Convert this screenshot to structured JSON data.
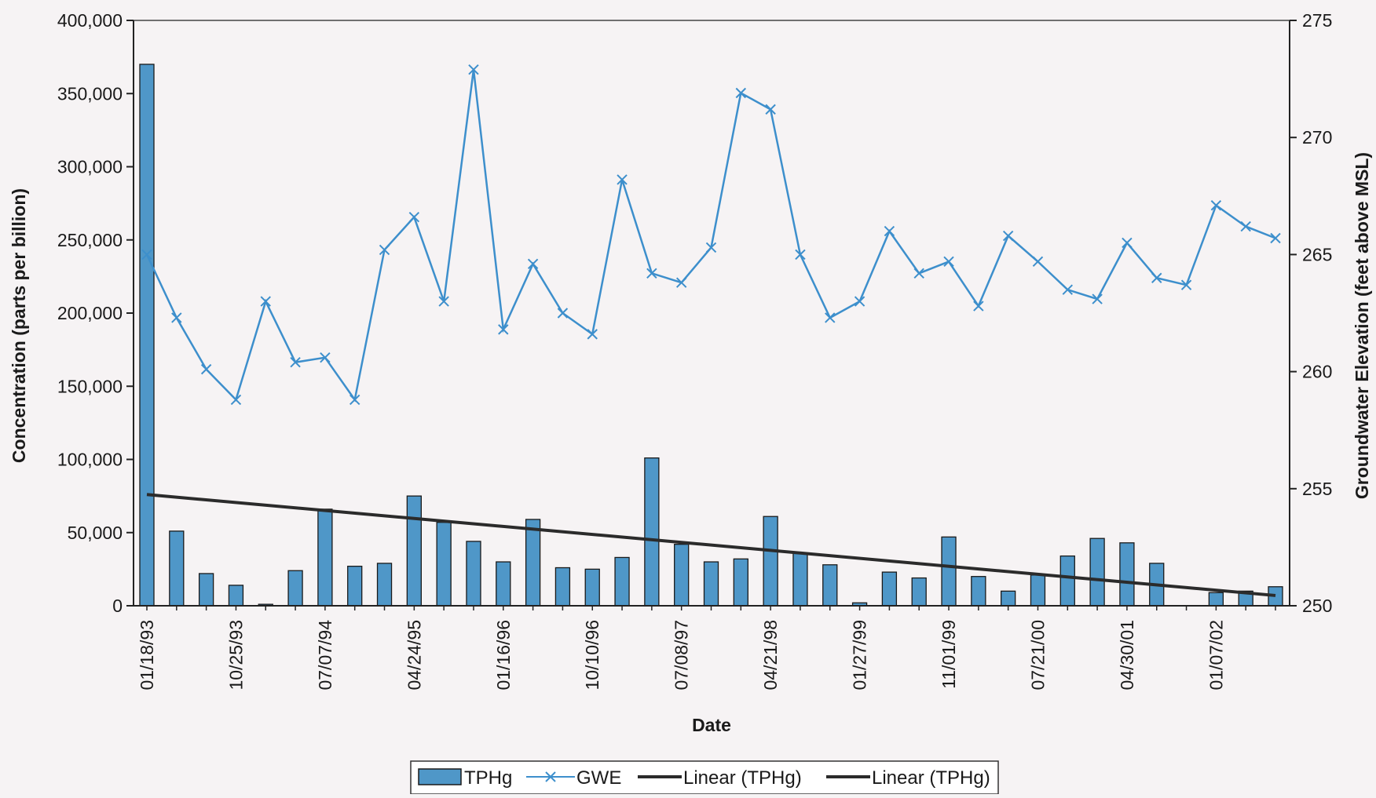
{
  "chart_data": {
    "type": "bar",
    "xlabel": "Date",
    "ylabel_left": "Concentration (parts per billion)",
    "ylabel_right": "Groundwater Elevation (feet above MSL)",
    "ylim_left": [
      0,
      400000
    ],
    "ylim_right": [
      250,
      275
    ],
    "left_ticks": [
      "0",
      "50,000",
      "100,000",
      "150,000",
      "200,000",
      "250,000",
      "300,000",
      "350,000",
      "400,000"
    ],
    "right_ticks": [
      "250",
      "255",
      "260",
      "265",
      "270",
      "275"
    ],
    "x_tick_labels": [
      {
        "index": 0,
        "label": "01/18/93"
      },
      {
        "index": 3,
        "label": "10/25/93"
      },
      {
        "index": 6,
        "label": "07/07/94"
      },
      {
        "index": 9,
        "label": "04/24/95"
      },
      {
        "index": 12,
        "label": "01/16/96"
      },
      {
        "index": 15,
        "label": "10/10/96"
      },
      {
        "index": 18,
        "label": "07/08/97"
      },
      {
        "index": 21,
        "label": "04/21/98"
      },
      {
        "index": 24,
        "label": "01/27/99"
      },
      {
        "index": 27,
        "label": "11/01/99"
      },
      {
        "index": 30,
        "label": "07/21/00"
      },
      {
        "index": 33,
        "label": "04/30/01"
      },
      {
        "index": 36,
        "label": "01/07/02"
      }
    ],
    "grid": false,
    "legend_position": "bottom",
    "series": [
      {
        "name": "TPHg",
        "kind": "bar",
        "axis": "left",
        "color": "#4f97c8",
        "values": [
          370000,
          51000,
          22000,
          14000,
          1000,
          24000,
          66000,
          27000,
          29000,
          75000,
          57000,
          44000,
          30000,
          59000,
          26000,
          25000,
          33000,
          101000,
          42000,
          30000,
          32000,
          61000,
          36000,
          28000,
          2000,
          23000,
          19000,
          47000,
          20000,
          10000,
          21000,
          34000,
          46000,
          43000,
          29000,
          0,
          9000,
          10000,
          13000
        ]
      },
      {
        "name": "GWE",
        "kind": "line",
        "axis": "right",
        "color": "#3d8fcc",
        "values": [
          265.0,
          262.3,
          260.1,
          258.8,
          263.0,
          260.4,
          260.6,
          258.8,
          265.2,
          266.6,
          263.0,
          272.9,
          261.8,
          264.6,
          262.5,
          261.6,
          268.2,
          264.2,
          263.8,
          265.3,
          271.9,
          271.2,
          265.0,
          262.3,
          263.0,
          266.0,
          264.2,
          264.7,
          262.8,
          265.8,
          264.7,
          263.5,
          263.1,
          265.5,
          264.0,
          263.7,
          267.1,
          266.2,
          265.7
        ]
      },
      {
        "name": "Linear (TPHg)",
        "kind": "trend",
        "axis": "left",
        "color": "#2b2b2b",
        "values": [
          76000,
          7000
        ]
      },
      {
        "name": "Linear (TPHg)",
        "kind": "trend",
        "axis": "left",
        "color": "#2b2b2b",
        "values": []
      }
    ]
  }
}
